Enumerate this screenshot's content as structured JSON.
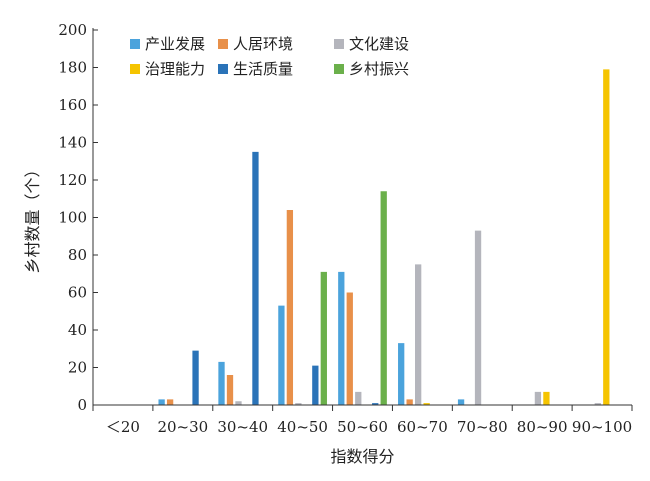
{
  "chart_data": {
    "type": "bar",
    "xlabel": "指数得分",
    "ylabel": "乡村数量（个）",
    "ylim": [
      0,
      200
    ],
    "yticks": [
      0,
      20,
      40,
      60,
      80,
      100,
      120,
      140,
      160,
      180,
      200
    ],
    "categories": [
      "＜20",
      "20~30",
      "30~40",
      "40~50",
      "50~60",
      "60~70",
      "70~80",
      "80~90",
      "90~100"
    ],
    "legend_position": "top-left",
    "grid": false,
    "series": [
      {
        "name": "产业发展",
        "color": "#4ba3dc",
        "values": [
          0,
          3,
          23,
          53,
          71,
          33,
          3,
          0,
          0
        ]
      },
      {
        "name": "人居环境",
        "color": "#e8904a",
        "values": [
          0,
          3,
          16,
          104,
          60,
          3,
          0,
          0,
          0
        ]
      },
      {
        "name": "文化建设",
        "color": "#b4b5bc",
        "values": [
          0,
          0,
          2,
          1,
          7,
          75,
          93,
          7,
          1
        ]
      },
      {
        "name": "治理能力",
        "color": "#f5c400",
        "values": [
          0,
          0,
          0,
          0,
          0,
          1,
          0,
          7,
          179
        ]
      },
      {
        "name": "生活质量",
        "color": "#2a73b8",
        "values": [
          0,
          29,
          135,
          21,
          1,
          0,
          0,
          0,
          0
        ]
      },
      {
        "name": "乡村振兴",
        "color": "#6bb04b",
        "values": [
          0,
          0,
          0,
          71,
          114,
          0,
          0,
          0,
          0
        ]
      }
    ]
  }
}
